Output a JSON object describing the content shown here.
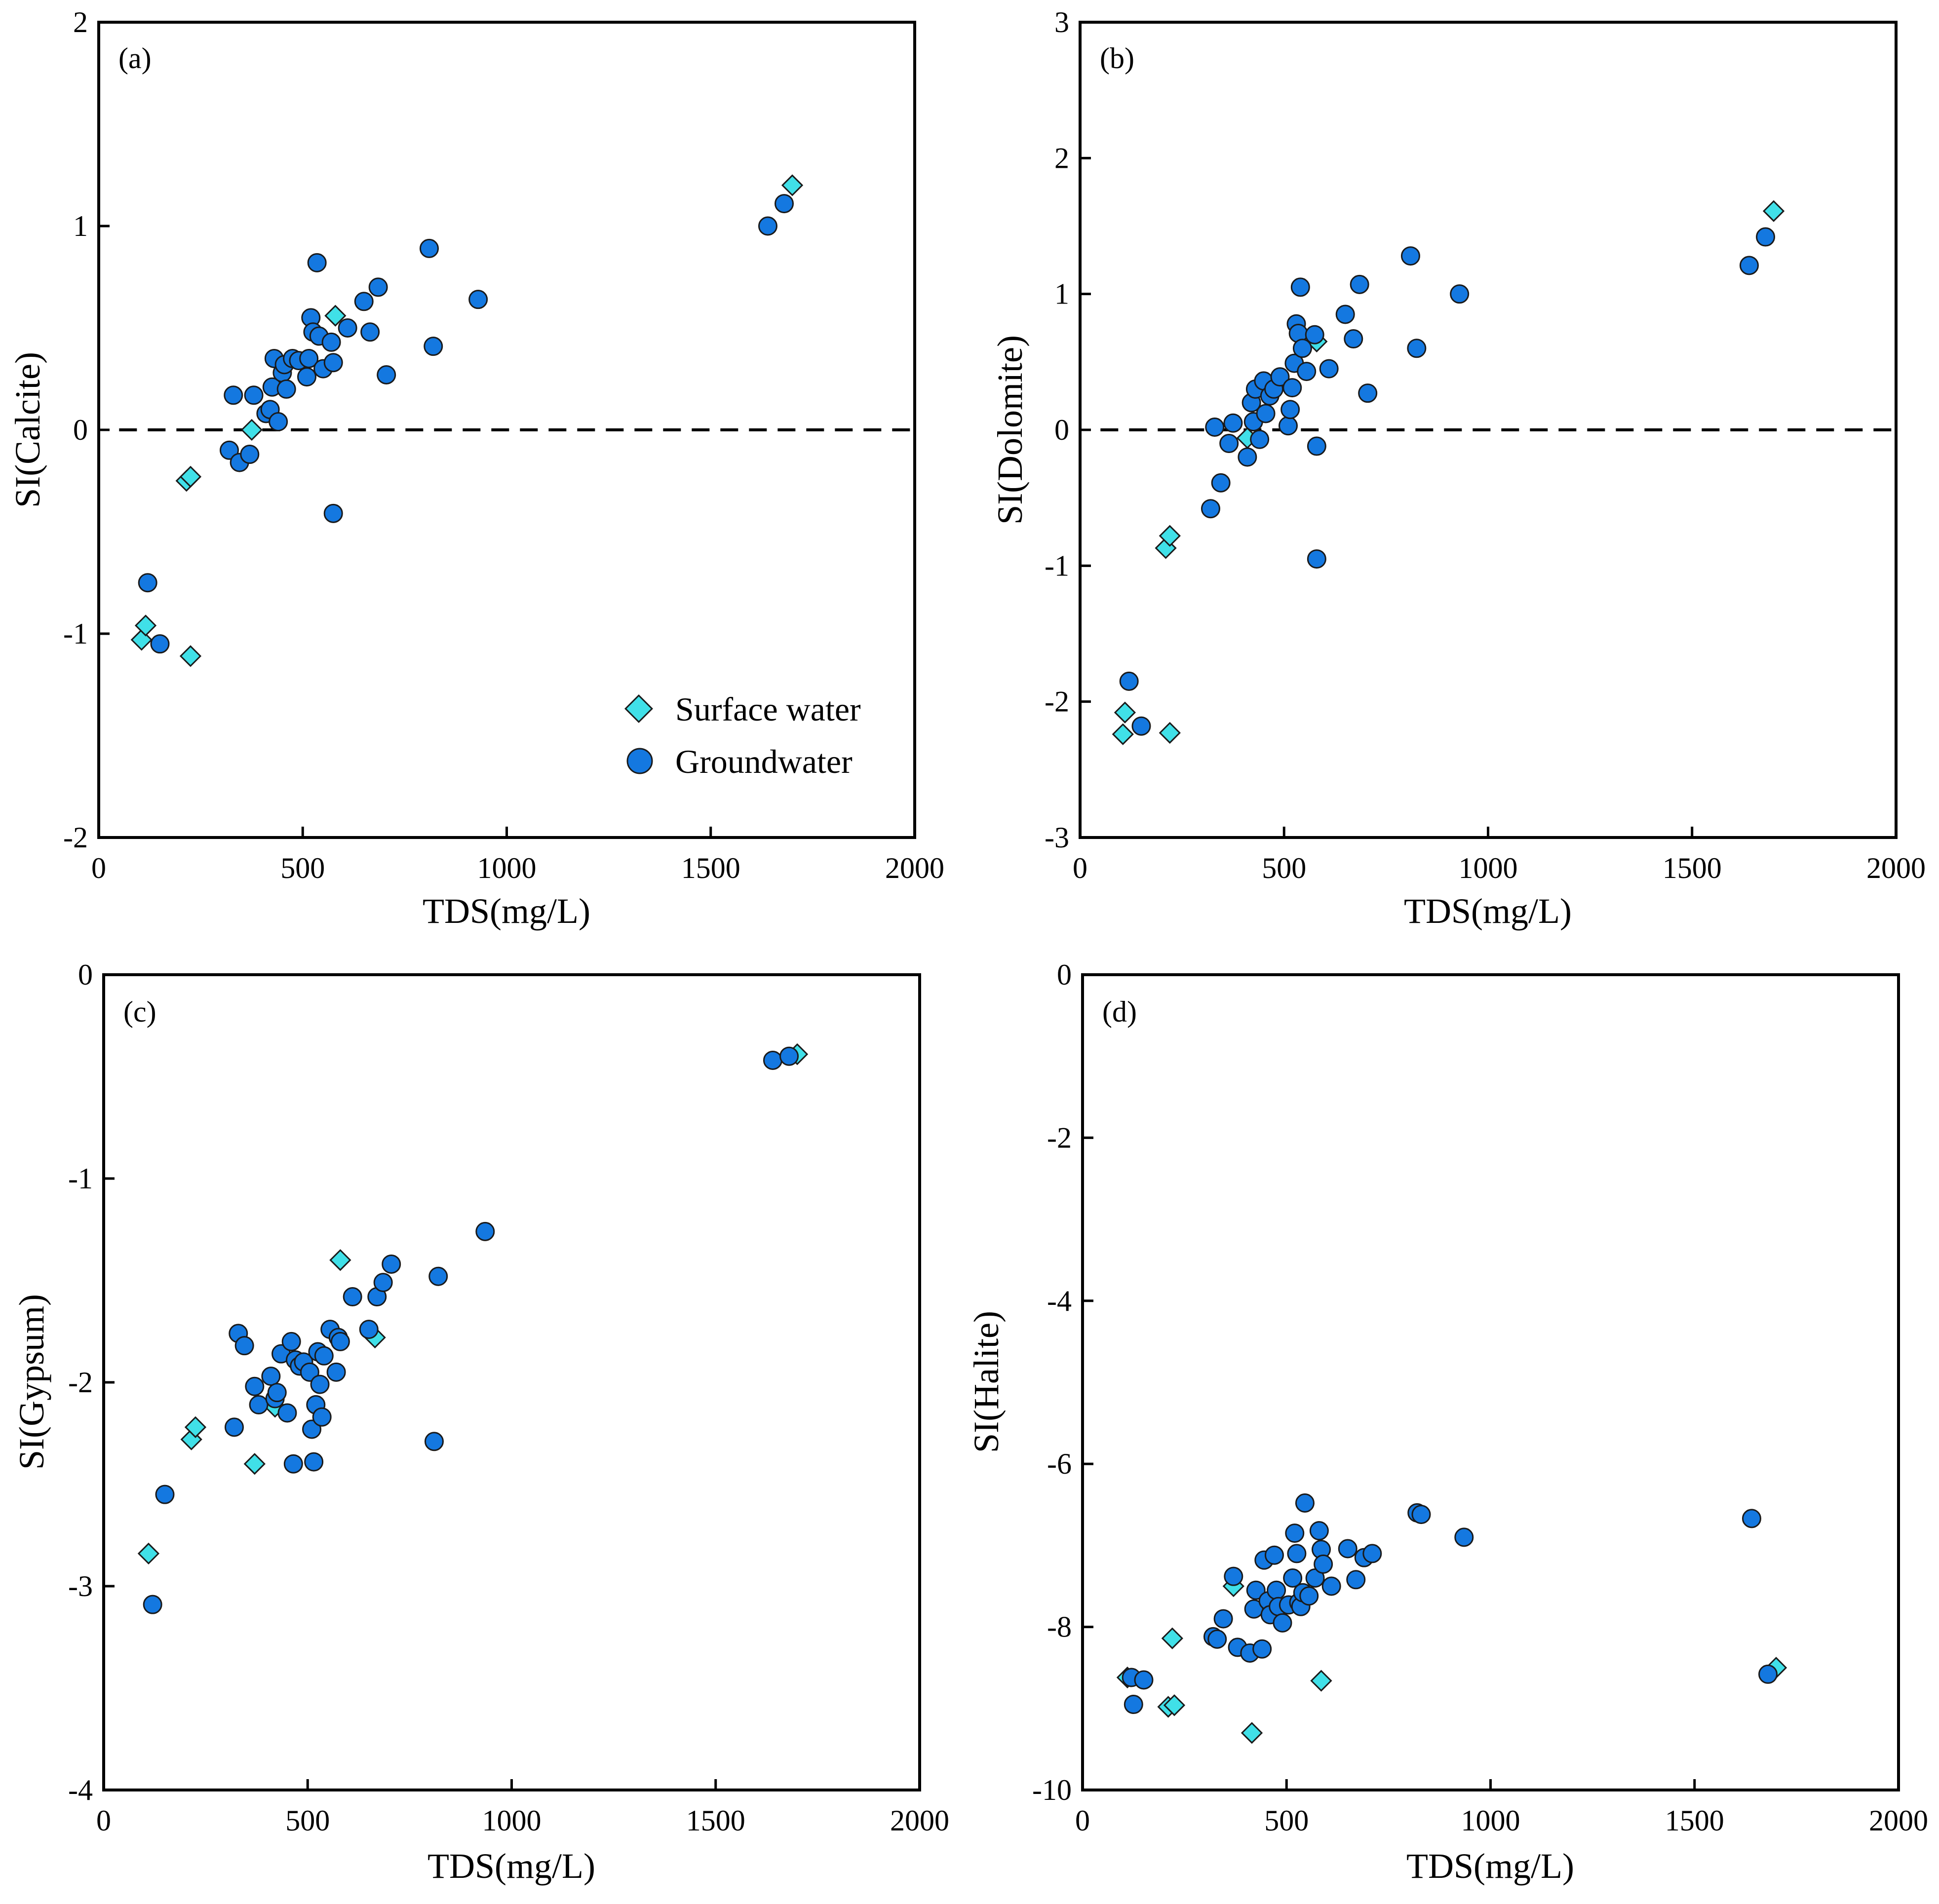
{
  "chart_data": [
    {
      "type": "scatter",
      "panel_label": "(a)",
      "xlabel": "TDS(mg/L)",
      "ylabel": "SI(Calcite)",
      "xlim": [
        0,
        2000
      ],
      "ylim": [
        -2,
        2
      ],
      "xticks": [
        0,
        500,
        1000,
        1500,
        2000
      ],
      "yticks": [
        -2,
        -1,
        0,
        1,
        2
      ],
      "reference_line": 0,
      "legend_position": "bottom-right",
      "series": [
        {
          "name": "Surface water",
          "marker": "diamond",
          "points": [
            [
              105,
              -1.03
            ],
            [
              115,
              -0.96
            ],
            [
              215,
              -0.25
            ],
            [
              225,
              -0.23
            ],
            [
              225,
              -1.11
            ],
            [
              375,
              0.0
            ],
            [
              580,
              0.56
            ],
            [
              1700,
              1.2
            ]
          ]
        },
        {
          "name": "Groundwater",
          "marker": "circle",
          "points": [
            [
              120,
              -0.75
            ],
            [
              150,
              -1.05
            ],
            [
              320,
              -0.1
            ],
            [
              330,
              0.17
            ],
            [
              345,
              -0.16
            ],
            [
              370,
              -0.12
            ],
            [
              380,
              0.17
            ],
            [
              410,
              0.08
            ],
            [
              420,
              0.1
            ],
            [
              425,
              0.21
            ],
            [
              430,
              0.35
            ],
            [
              440,
              0.04
            ],
            [
              450,
              0.28
            ],
            [
              455,
              0.32
            ],
            [
              460,
              0.2
            ],
            [
              475,
              0.35
            ],
            [
              490,
              0.34
            ],
            [
              510,
              0.26
            ],
            [
              515,
              0.35
            ],
            [
              520,
              0.55
            ],
            [
              525,
              0.48
            ],
            [
              535,
              0.82
            ],
            [
              540,
              0.46
            ],
            [
              550,
              0.3
            ],
            [
              570,
              0.43
            ],
            [
              575,
              0.33
            ],
            [
              575,
              -0.41
            ],
            [
              610,
              0.5
            ],
            [
              650,
              0.63
            ],
            [
              665,
              0.48
            ],
            [
              685,
              0.7
            ],
            [
              705,
              0.27
            ],
            [
              810,
              0.89
            ],
            [
              820,
              0.41
            ],
            [
              930,
              0.64
            ],
            [
              1640,
              1.0
            ],
            [
              1680,
              1.11
            ]
          ]
        }
      ]
    },
    {
      "type": "scatter",
      "panel_label": "(b)",
      "xlabel": "TDS(mg/L)",
      "ylabel": "SI(Dolomite)",
      "xlim": [
        0,
        2000
      ],
      "ylim": [
        -3,
        3
      ],
      "xticks": [
        0,
        500,
        1000,
        1500,
        2000
      ],
      "yticks": [
        -3,
        -2,
        -1,
        0,
        1,
        2,
        3
      ],
      "reference_line": 0,
      "series": [
        {
          "name": "Surface water",
          "marker": "diamond",
          "points": [
            [
              105,
              -2.24
            ],
            [
              110,
              -2.08
            ],
            [
              210,
              -0.87
            ],
            [
              220,
              -0.78
            ],
            [
              220,
              -2.23
            ],
            [
              410,
              -0.06
            ],
            [
              580,
              0.65
            ],
            [
              1700,
              1.61
            ]
          ]
        },
        {
          "name": "Groundwater",
          "marker": "circle",
          "points": [
            [
              120,
              -1.85
            ],
            [
              150,
              -2.18
            ],
            [
              320,
              -0.58
            ],
            [
              330,
              0.02
            ],
            [
              345,
              -0.39
            ],
            [
              365,
              -0.1
            ],
            [
              375,
              0.05
            ],
            [
              410,
              -0.2
            ],
            [
              420,
              0.2
            ],
            [
              425,
              0.06
            ],
            [
              430,
              0.3
            ],
            [
              440,
              -0.07
            ],
            [
              450,
              0.36
            ],
            [
              455,
              0.12
            ],
            [
              465,
              0.25
            ],
            [
              475,
              0.3
            ],
            [
              490,
              0.39
            ],
            [
              510,
              0.03
            ],
            [
              515,
              0.15
            ],
            [
              520,
              0.31
            ],
            [
              525,
              0.49
            ],
            [
              530,
              0.78
            ],
            [
              535,
              0.71
            ],
            [
              540,
              1.05
            ],
            [
              545,
              0.6
            ],
            [
              555,
              0.43
            ],
            [
              575,
              0.7
            ],
            [
              580,
              -0.12
            ],
            [
              580,
              -0.95
            ],
            [
              610,
              0.45
            ],
            [
              650,
              0.85
            ],
            [
              670,
              0.67
            ],
            [
              685,
              1.07
            ],
            [
              705,
              0.27
            ],
            [
              810,
              1.28
            ],
            [
              825,
              0.6
            ],
            [
              930,
              1.0
            ],
            [
              1640,
              1.21
            ],
            [
              1680,
              1.42
            ]
          ]
        }
      ]
    },
    {
      "type": "scatter",
      "panel_label": "(c)",
      "xlabel": "TDS(mg/L)",
      "ylabel": "SI(Gypsum)",
      "xlim": [
        0,
        2000
      ],
      "ylim": [
        -4,
        0
      ],
      "xticks": [
        0,
        500,
        1000,
        1500,
        2000
      ],
      "yticks": [
        -4,
        -3,
        -2,
        -1,
        0
      ],
      "series": [
        {
          "name": "Surface water",
          "marker": "diamond",
          "points": [
            [
              110,
              -2.84
            ],
            [
              215,
              -2.28
            ],
            [
              225,
              -2.22
            ],
            [
              370,
              -2.4
            ],
            [
              420,
              -2.12
            ],
            [
              580,
              -1.4
            ],
            [
              665,
              -1.78
            ],
            [
              1700,
              -0.39
            ]
          ]
        },
        {
          "name": "Groundwater",
          "marker": "circle",
          "points": [
            [
              120,
              -3.09
            ],
            [
              150,
              -2.55
            ],
            [
              320,
              -2.22
            ],
            [
              330,
              -1.76
            ],
            [
              345,
              -1.82
            ],
            [
              370,
              -2.02
            ],
            [
              380,
              -2.11
            ],
            [
              410,
              -1.97
            ],
            [
              420,
              -2.08
            ],
            [
              425,
              -2.05
            ],
            [
              435,
              -1.86
            ],
            [
              450,
              -2.15
            ],
            [
              460,
              -1.8
            ],
            [
              465,
              -2.4
            ],
            [
              470,
              -1.89
            ],
            [
              480,
              -1.92
            ],
            [
              490,
              -1.9
            ],
            [
              505,
              -1.95
            ],
            [
              510,
              -2.23
            ],
            [
              515,
              -2.39
            ],
            [
              520,
              -2.11
            ],
            [
              525,
              -1.85
            ],
            [
              530,
              -2.01
            ],
            [
              535,
              -2.17
            ],
            [
              540,
              -1.87
            ],
            [
              555,
              -1.74
            ],
            [
              570,
              -1.95
            ],
            [
              575,
              -1.78
            ],
            [
              580,
              -1.8
            ],
            [
              610,
              -1.58
            ],
            [
              650,
              -1.74
            ],
            [
              670,
              -1.58
            ],
            [
              685,
              -1.51
            ],
            [
              705,
              -1.42
            ],
            [
              810,
              -2.29
            ],
            [
              820,
              -1.48
            ],
            [
              935,
              -1.26
            ],
            [
              1640,
              -0.42
            ],
            [
              1680,
              -0.4
            ]
          ]
        }
      ]
    },
    {
      "type": "scatter",
      "panel_label": "(d)",
      "xlabel": "TDS(mg/L)",
      "ylabel": "SI(Halite)",
      "xlim": [
        0,
        2000
      ],
      "ylim": [
        -10,
        0
      ],
      "xticks": [
        0,
        500,
        1000,
        1500,
        2000
      ],
      "yticks": [
        -10,
        -8,
        -6,
        -4,
        -2,
        0
      ],
      "series": [
        {
          "name": "Surface water",
          "marker": "diamond",
          "points": [
            [
              110,
              -8.62
            ],
            [
              210,
              -8.98
            ],
            [
              220,
              -8.14
            ],
            [
              225,
              -8.96
            ],
            [
              370,
              -7.5
            ],
            [
              415,
              -9.3
            ],
            [
              585,
              -8.66
            ],
            [
              1700,
              -8.5
            ]
          ]
        },
        {
          "name": "Groundwater",
          "marker": "circle",
          "points": [
            [
              120,
              -8.62
            ],
            [
              125,
              -8.95
            ],
            [
              150,
              -8.65
            ],
            [
              320,
              -8.12
            ],
            [
              330,
              -8.15
            ],
            [
              345,
              -7.9
            ],
            [
              370,
              -7.38
            ],
            [
              380,
              -8.25
            ],
            [
              410,
              -8.32
            ],
            [
              420,
              -7.78
            ],
            [
              425,
              -7.55
            ],
            [
              440,
              -8.27
            ],
            [
              445,
              -7.18
            ],
            [
              455,
              -7.68
            ],
            [
              460,
              -7.85
            ],
            [
              470,
              -7.12
            ],
            [
              475,
              -7.55
            ],
            [
              480,
              -7.75
            ],
            [
              490,
              -7.95
            ],
            [
              505,
              -7.73
            ],
            [
              515,
              -7.4
            ],
            [
              520,
              -6.85
            ],
            [
              525,
              -7.1
            ],
            [
              530,
              -7.7
            ],
            [
              535,
              -7.75
            ],
            [
              540,
              -7.58
            ],
            [
              545,
              -6.48
            ],
            [
              555,
              -7.62
            ],
            [
              570,
              -7.4
            ],
            [
              580,
              -6.82
            ],
            [
              585,
              -7.05
            ],
            [
              590,
              -7.23
            ],
            [
              610,
              -7.5
            ],
            [
              650,
              -7.04
            ],
            [
              670,
              -7.42
            ],
            [
              690,
              -7.15
            ],
            [
              710,
              -7.1
            ],
            [
              820,
              -6.6
            ],
            [
              830,
              -6.62
            ],
            [
              935,
              -6.9
            ],
            [
              1640,
              -6.67
            ],
            [
              1680,
              -8.58
            ]
          ]
        }
      ]
    }
  ],
  "legend": {
    "surface_water": "Surface water",
    "groundwater": "Groundwater"
  },
  "colors": {
    "surface": "#40e0e8",
    "ground": "#1478e0",
    "edge": "#1a1a1a"
  }
}
